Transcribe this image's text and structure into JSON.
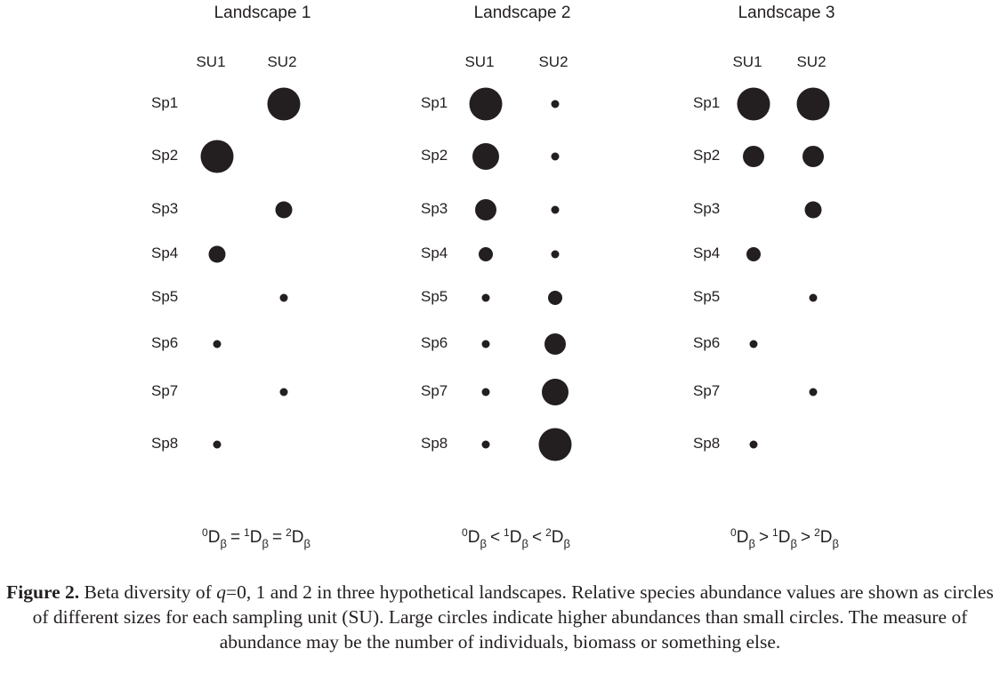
{
  "landscapes": [
    {
      "title": "Landscape 1",
      "su_labels": [
        "SU1",
        "SU2"
      ],
      "abundance_class": [
        [
          null,
          6
        ],
        [
          6,
          null
        ],
        [
          null,
          3
        ],
        [
          3,
          null
        ],
        [
          null,
          1
        ],
        [
          1,
          null
        ],
        [
          null,
          1
        ],
        [
          1,
          null
        ]
      ],
      "formula": {
        "a": "0",
        "b": "1",
        "c": "2",
        "op": "="
      }
    },
    {
      "title": "Landscape 2",
      "su_labels": [
        "SU1",
        "SU2"
      ],
      "abundance_class": [
        [
          6,
          1
        ],
        [
          5,
          1
        ],
        [
          4,
          1
        ],
        [
          2,
          1
        ],
        [
          1,
          2
        ],
        [
          1,
          4
        ],
        [
          1,
          5
        ],
        [
          1,
          6
        ]
      ],
      "formula": {
        "a": "0",
        "b": "1",
        "c": "2",
        "op": "<"
      }
    },
    {
      "title": "Landscape 3",
      "su_labels": [
        "SU1",
        "SU2"
      ],
      "abundance_class": [
        [
          6,
          6
        ],
        [
          4,
          4
        ],
        [
          null,
          3
        ],
        [
          2,
          null
        ],
        [
          null,
          1
        ],
        [
          1,
          null
        ],
        [
          null,
          1
        ],
        [
          1,
          null
        ]
      ],
      "formula": {
        "a": "0",
        "b": "1",
        "c": "2",
        "op": ">"
      }
    }
  ],
  "species": [
    "Sp1",
    "Sp2",
    "Sp3",
    "Sp4",
    "Sp5",
    "Sp6",
    "Sp7",
    "Sp8"
  ],
  "formula_symbol": "D",
  "formula_sub": "β",
  "caption": {
    "label": "Figure 2.",
    "text_1": " Beta diversity of ",
    "q": "q",
    "text_2": "=0, 1 and 2 in three hypothetical landscapes. Relative species abundance values are shown as circles of different sizes for each sampling unit (SU). Large circles indicate higher abundances than small circles. The measure of abundance may be the number of individuals, biomass or something else."
  },
  "dot_color": "#231f20"
}
